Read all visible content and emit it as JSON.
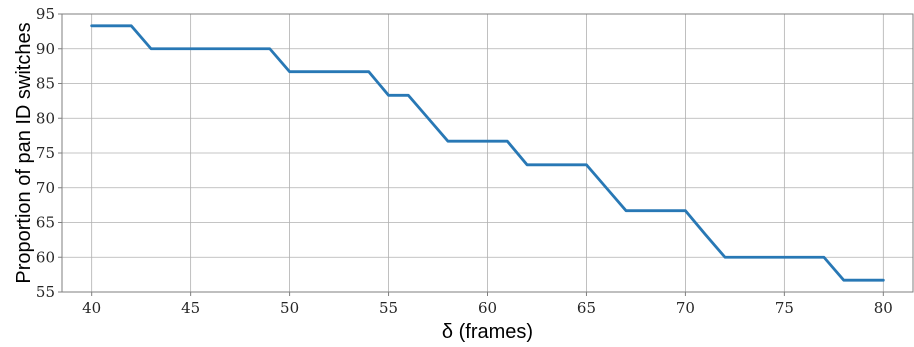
{
  "chart_data": {
    "type": "line",
    "title": "",
    "xlabel": "δ (frames)",
    "ylabel": "Proportion of pan ID switches",
    "xlim": [
      38.5,
      81.5
    ],
    "ylim": [
      55,
      95
    ],
    "xticks": [
      40,
      45,
      50,
      55,
      60,
      65,
      70,
      75,
      80
    ],
    "yticks": [
      55,
      60,
      65,
      70,
      75,
      80,
      85,
      90,
      95
    ],
    "grid": true,
    "legend": "none",
    "series": [
      {
        "color": "#2878b5",
        "x": [
          40,
          41,
          42,
          43,
          44,
          45,
          46,
          47,
          48,
          49,
          50,
          51,
          52,
          53,
          54,
          55,
          56,
          57,
          58,
          59,
          60,
          61,
          62,
          63,
          64,
          65,
          66,
          67,
          68,
          69,
          70,
          71,
          72,
          73,
          74,
          75,
          76,
          77,
          78,
          79,
          80
        ],
        "y": [
          93.3,
          93.3,
          93.3,
          90.0,
          90.0,
          90.0,
          90.0,
          90.0,
          90.0,
          90.0,
          86.7,
          86.7,
          86.7,
          86.7,
          86.7,
          83.3,
          83.3,
          80.0,
          76.7,
          76.7,
          76.7,
          76.7,
          73.3,
          73.3,
          73.3,
          73.3,
          70.0,
          66.7,
          66.7,
          66.7,
          66.7,
          63.3,
          60.0,
          60.0,
          60.0,
          60.0,
          60.0,
          60.0,
          56.7,
          56.7,
          56.7
        ]
      }
    ]
  }
}
